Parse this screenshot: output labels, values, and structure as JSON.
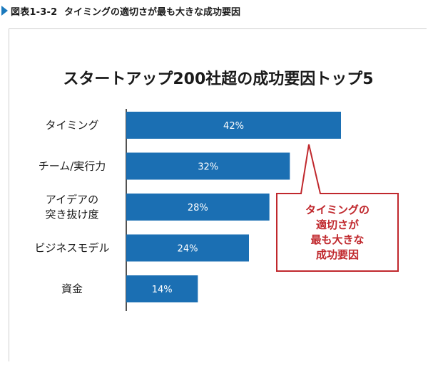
{
  "figure": {
    "label": "図表1-3-2",
    "caption": "タイミングの適切さが最も大きな成功要因"
  },
  "colors": {
    "bar": "#1b6fb3",
    "callout": "#c0282d",
    "accent_marker": "#1b79bd"
  },
  "chart_data": {
    "type": "bar",
    "orientation": "horizontal",
    "title": "スタートアップ200社超の成功要因トップ5",
    "categories": [
      [
        "タイミング"
      ],
      [
        "チーム/実行力"
      ],
      [
        "アイデアの",
        "突き抜け度"
      ],
      [
        "ビジネスモデル"
      ],
      [
        "資金"
      ]
    ],
    "values": [
      42,
      32,
      28,
      24,
      14
    ],
    "value_labels": [
      "42%",
      "32%",
      "28%",
      "24%",
      "14%"
    ],
    "unit": "%",
    "xlim": [
      0,
      42
    ],
    "grid": false,
    "annotation": {
      "text_lines": [
        "タイミングの",
        "適切さが",
        "最も大きな",
        "成功要因"
      ],
      "points_to": "タイミング"
    }
  }
}
